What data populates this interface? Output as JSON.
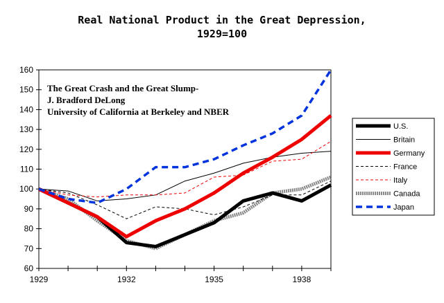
{
  "chart_data": {
    "type": "line",
    "title": "Real National Product in the Great Depression,",
    "subtitle": "1929=100",
    "annotation": [
      "The Great Crash and the Great Slump-",
      "J. Bradford DeLong",
      "University of California at Berkeley and NBER"
    ],
    "xlabel": "",
    "ylabel": "",
    "x": [
      1929,
      1930,
      1931,
      1932,
      1933,
      1934,
      1935,
      1936,
      1937,
      1938,
      1939
    ],
    "xlim": [
      1929,
      1939
    ],
    "ylim": [
      60,
      160
    ],
    "x_ticks": [
      "1929",
      "1932",
      "1935",
      "1938"
    ],
    "y_ticks": [
      "60",
      "70",
      "80",
      "90",
      "100",
      "110",
      "120",
      "130",
      "140",
      "150",
      "160"
    ],
    "grid": false,
    "legend_position": "right",
    "series": [
      {
        "name": "U.S.",
        "color": "#000000",
        "style": "thick-solid",
        "values": [
          100,
          93,
          86,
          73,
          71,
          77,
          83,
          94,
          98,
          94,
          102
        ]
      },
      {
        "name": "Britain",
        "color": "#000000",
        "style": "thin-solid",
        "values": [
          100,
          99,
          94,
          95,
          97,
          104,
          108,
          113,
          116,
          118,
          119
        ]
      },
      {
        "name": "Germany",
        "color": "#ee0000",
        "style": "thick-solid",
        "values": [
          100,
          93,
          86,
          76,
          84,
          90,
          98,
          108,
          116,
          125,
          137
        ]
      },
      {
        "name": "France",
        "color": "#000000",
        "style": "thin-dashed",
        "values": [
          100,
          98,
          92,
          85,
          91,
          90,
          87,
          91,
          97,
          97,
          104
        ]
      },
      {
        "name": "Italy",
        "color": "#ee0000",
        "style": "thin-dashed",
        "values": [
          100,
          97,
          96,
          97,
          97,
          98,
          106,
          107,
          114,
          115,
          124
        ]
      },
      {
        "name": "Canada",
        "color": "#888888",
        "style": "hatched",
        "values": [
          100,
          95,
          84,
          74,
          70,
          77,
          84,
          88,
          98,
          100,
          106
        ]
      },
      {
        "name": "Japan",
        "color": "#0033dd",
        "style": "thick-dashed",
        "values": [
          100,
          95,
          93,
          100,
          111,
          111,
          115,
          122,
          128,
          137,
          160
        ]
      }
    ]
  }
}
